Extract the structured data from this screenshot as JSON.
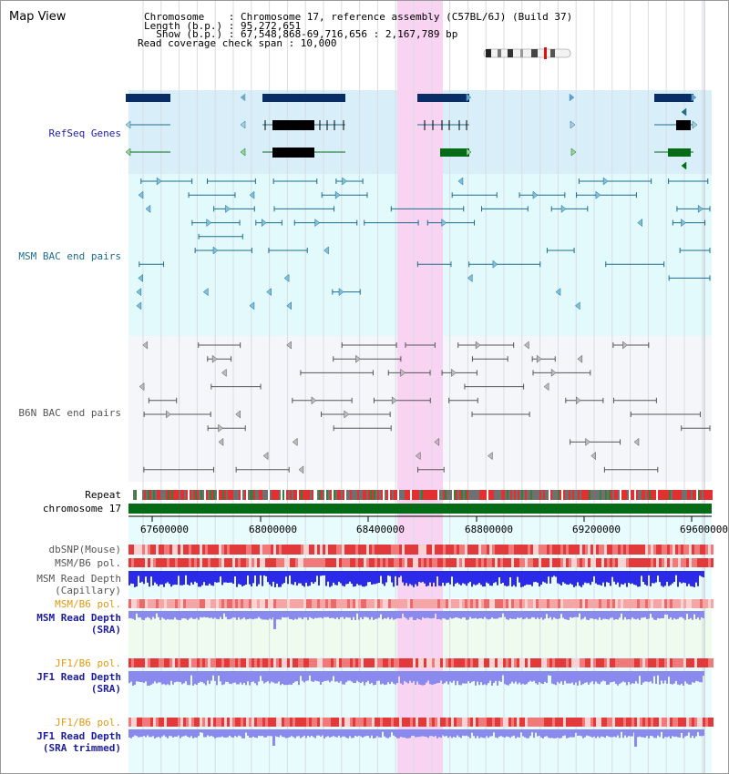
{
  "app": {
    "title": "Map View"
  },
  "header": {
    "lines": [
      "Chromosome    : Chromosome 17, reference assembly (C57BL/6J) (Build 37)",
      "Length (b.p.) : 95,272,651",
      "  Show (b.p.) : 67,548,868-69,716,656 : 2,167,789 bp",
      "Read coverage check span : 10,000"
    ]
  },
  "tracks": {
    "refseq": "RefSeq Genes",
    "msm_bac": "MSM BAC end pairs",
    "b6n_bac": "B6N BAC end pairs",
    "repeat": "Repeat",
    "chromosome": "chromosome 17",
    "dbsnp": "dbSNP(Mouse)",
    "msm_b6_pol": "MSM/B6 pol.",
    "msm_read_cap_1": "MSM Read Depth",
    "msm_read_cap_2": "(Capillary)",
    "msm_b6_pol2": "MSM/B6 pol.",
    "msm_read_sra_1": "MSM Read Depth",
    "msm_read_sra_2": "(SRA)",
    "jf1_b6_pol": "JF1/B6 pol.",
    "jf1_read_sra_1": "JF1 Read Depth",
    "jf1_read_sra_2": "(SRA)",
    "jf1_b6_pol2": "JF1/B6 pol.",
    "jf1_read_trim_1": "JF1 Read Depth",
    "jf1_read_trim_2": "(SRA trimmed)"
  },
  "ruler": {
    "ticks": [
      "67600000",
      "68000000",
      "68400000",
      "68800000",
      "69200000",
      "69600000"
    ]
  },
  "colors": {
    "refseq_bg": "#d8eef8",
    "msm_bg": "#e2fafc",
    "b6n_bg": "#f4f6fa",
    "highlight": "#f9d3f2",
    "gene_dark": "#0b2d66",
    "gene_green": "#066b16",
    "msm_line": "#1f6c8c",
    "b6n_line": "#555555",
    "snp": "#e23a3a",
    "depth_msm": "#2a2ae8",
    "depth_light": "#8a8aee",
    "label_navy": "#1d1d9c",
    "label_orange": "#e09a10"
  }
}
